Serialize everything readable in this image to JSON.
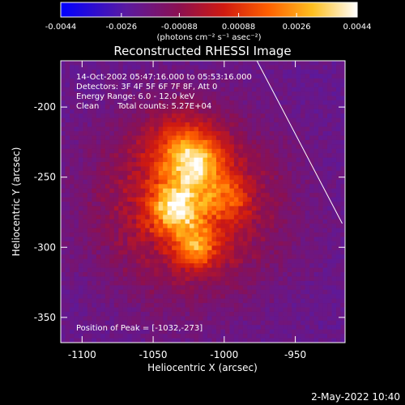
{
  "chart_data": {
    "type": "heatmap",
    "title": "Reconstructed RHESSI Image",
    "xlabel": "Heliocentric X (arcsec)",
    "ylabel": "Heliocentric Y (arcsec)",
    "xlim": [
      -1115,
      -915
    ],
    "ylim": [
      -368,
      -167
    ],
    "x_ticks": [
      "-1100",
      "-1050",
      "-1000",
      "-950"
    ],
    "x_tick_values": [
      -1100,
      -1050,
      -1000,
      -950
    ],
    "y_ticks": [
      "-200",
      "-250",
      "-300",
      "-350"
    ],
    "y_tick_values": [
      -200,
      -250,
      -300,
      -350
    ],
    "colorbar": {
      "ticks": [
        "-0.0044",
        "-0.0026",
        "-0.00088",
        "0.00088",
        "0.0026",
        "0.0044"
      ],
      "tick_values": [
        -0.0044,
        -0.0026,
        -0.00088,
        0.00088,
        0.0026,
        0.0044
      ],
      "range": [
        -0.0044,
        0.0044
      ],
      "unit_label": "(photons cm⁻² s⁻¹ asec⁻²)",
      "colormap": "blue-purple-red-orange-yellow-white"
    },
    "annotations": {
      "time_range": "14-Oct-2002 05:47:16.000 to 05:53:16.000",
      "detectors": "Detectors: 3F 4F 5F 6F 7F 8F, Att 0",
      "energy_range": "Energy Range: 6.0 - 12.0 keV",
      "method": "Clean",
      "total_counts": "Total counts: 5.27E+04",
      "peak": "Position of Peak = [-1032,-273]"
    },
    "peak_position": [
      -1032,
      -273
    ],
    "limb_line": [
      [
        -977,
        -167
      ],
      [
        -917,
        -283
      ]
    ],
    "sources": [
      {
        "x": -1034,
        "y": -272,
        "sigma": 12,
        "amp": 0.004
      },
      {
        "x": -1020,
        "y": -300,
        "sigma": 10,
        "amp": 0.003
      },
      {
        "x": -1020,
        "y": -240,
        "sigma": 12,
        "amp": 0.0028
      },
      {
        "x": -1000,
        "y": -265,
        "sigma": 12,
        "amp": 0.0018
      },
      {
        "x": -1030,
        "y": -230,
        "sigma": 18,
        "amp": 0.002
      }
    ],
    "halo": {
      "x": -1025,
      "y": -270,
      "sigma": 44,
      "amp": 0.0026
    },
    "background": -0.0021
  },
  "footer": {
    "date_stamp": "2-May-2022 10:40"
  },
  "colors": {
    "background": "#000000",
    "text": "#ffffff"
  }
}
